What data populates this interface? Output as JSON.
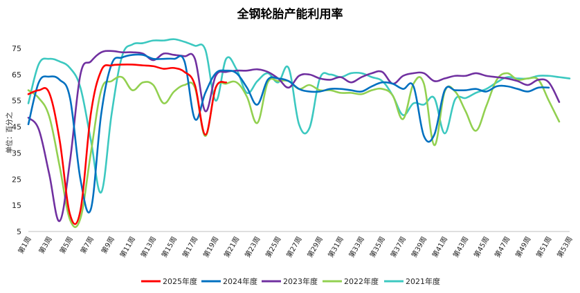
{
  "chart_data": {
    "type": "line",
    "title": "全钢轮胎产能利用率",
    "ylabel": "单位：百分之",
    "ylim": [
      5,
      75
    ],
    "yticks": [
      5,
      15,
      25,
      35,
      45,
      55,
      65,
      75
    ],
    "grid": false,
    "legend_position": "bottom",
    "x": [
      1,
      3,
      5,
      7,
      9,
      11,
      13,
      15,
      17,
      19,
      21,
      23,
      25,
      27,
      29,
      31,
      33,
      35,
      37,
      39,
      41,
      43,
      45,
      47,
      49,
      51,
      53
    ],
    "x_tick_labels": [
      "第1周",
      "第3周",
      "第5周",
      "第7周",
      "第9周",
      "第11周",
      "第13周",
      "第15周",
      "第17周",
      "第19周",
      "第21周",
      "第23周",
      "第25周",
      "第27周",
      "第29周",
      "第31周",
      "第33周",
      "第35周",
      "第37周",
      "第39周",
      "第41周",
      "第43周",
      "第45周",
      "第47周",
      "第49周",
      "第51周",
      "第53周"
    ],
    "series": [
      {
        "name": "2025年度",
        "color": "#ff0000",
        "points": [
          [
            1,
            57.5
          ],
          [
            2,
            59
          ],
          [
            3,
            58
          ],
          [
            4,
            40
          ],
          [
            5,
            11.5
          ],
          [
            6,
            13
          ],
          [
            7,
            50
          ],
          [
            8,
            66.5
          ],
          [
            9,
            68.5
          ],
          [
            10,
            68.8
          ],
          [
            11,
            68.8
          ],
          [
            12,
            68.5
          ],
          [
            13,
            68.2
          ],
          [
            14,
            67.2
          ],
          [
            15,
            67.5
          ],
          [
            16,
            66
          ],
          [
            17,
            61
          ],
          [
            18,
            42
          ],
          [
            19,
            60
          ],
          [
            20,
            62
          ]
        ]
      },
      {
        "name": "2024年度",
        "color": "#0070c0",
        "points": [
          [
            1,
            46
          ],
          [
            2,
            62
          ],
          [
            3,
            64.2
          ],
          [
            4,
            63
          ],
          [
            5,
            56
          ],
          [
            6,
            25
          ],
          [
            7,
            13.5
          ],
          [
            8,
            50
          ],
          [
            9,
            69
          ],
          [
            10,
            71.5
          ],
          [
            11,
            72.5
          ],
          [
            12,
            72.5
          ],
          [
            13,
            71
          ],
          [
            14,
            71
          ],
          [
            15,
            71
          ],
          [
            16,
            70
          ],
          [
            17,
            48
          ],
          [
            18,
            58
          ],
          [
            19,
            65.5
          ],
          [
            20,
            66.5
          ],
          [
            21,
            65.5
          ],
          [
            22,
            60
          ],
          [
            23,
            53.5
          ],
          [
            24,
            63
          ],
          [
            25,
            63.5
          ],
          [
            26,
            62.5
          ],
          [
            27,
            59.5
          ],
          [
            28,
            58.5
          ],
          [
            29,
            58.5
          ],
          [
            30,
            59.5
          ],
          [
            31,
            59.5
          ],
          [
            32,
            59
          ],
          [
            33,
            58.5
          ],
          [
            34,
            60.5
          ],
          [
            35,
            62
          ],
          [
            36,
            61.5
          ],
          [
            37,
            59.5
          ],
          [
            38,
            60.5
          ],
          [
            39,
            41.5
          ],
          [
            40,
            42
          ],
          [
            41,
            59
          ],
          [
            42,
            59
          ],
          [
            43,
            59
          ],
          [
            44,
            59.5
          ],
          [
            45,
            58.5
          ],
          [
            46,
            60.5
          ],
          [
            47,
            60.5
          ],
          [
            48,
            59.5
          ],
          [
            49,
            58.5
          ],
          [
            50,
            60
          ],
          [
            51,
            60
          ]
        ]
      },
      {
        "name": "2023年度",
        "color": "#7030a0",
        "points": [
          [
            1,
            48.5
          ],
          [
            2,
            44
          ],
          [
            3,
            27
          ],
          [
            4,
            9
          ],
          [
            5,
            32
          ],
          [
            6,
            65
          ],
          [
            7,
            70
          ],
          [
            8,
            73.5
          ],
          [
            9,
            74
          ],
          [
            10,
            73.5
          ],
          [
            11,
            73.5
          ],
          [
            12,
            73
          ],
          [
            13,
            70.5
          ],
          [
            14,
            73
          ],
          [
            15,
            72.5
          ],
          [
            16,
            72
          ],
          [
            17,
            71
          ],
          [
            18,
            51
          ],
          [
            19,
            64.5
          ],
          [
            20,
            66
          ],
          [
            21,
            66.5
          ],
          [
            22,
            66.5
          ],
          [
            23,
            67
          ],
          [
            24,
            66
          ],
          [
            25,
            63.5
          ],
          [
            26,
            60
          ],
          [
            27,
            64.5
          ],
          [
            28,
            65
          ],
          [
            29,
            63.5
          ],
          [
            30,
            63
          ],
          [
            31,
            64
          ],
          [
            32,
            62
          ],
          [
            33,
            64
          ],
          [
            34,
            65.5
          ],
          [
            35,
            66
          ],
          [
            36,
            61.5
          ],
          [
            37,
            64.5
          ],
          [
            38,
            65.5
          ],
          [
            39,
            65.5
          ],
          [
            40,
            62.5
          ],
          [
            41,
            63.5
          ],
          [
            42,
            64.5
          ],
          [
            43,
            64.5
          ],
          [
            44,
            65.5
          ],
          [
            45,
            64.5
          ],
          [
            46,
            64
          ],
          [
            47,
            63.5
          ],
          [
            48,
            62.5
          ],
          [
            49,
            61
          ],
          [
            50,
            63
          ],
          [
            51,
            62
          ],
          [
            52,
            54.5
          ]
        ]
      },
      {
        "name": "2022年度",
        "color": "#92d050",
        "points": [
          [
            1,
            59
          ],
          [
            2,
            56
          ],
          [
            3,
            49
          ],
          [
            4,
            30
          ],
          [
            5,
            9.5
          ],
          [
            6,
            10
          ],
          [
            7,
            35
          ],
          [
            8,
            59
          ],
          [
            9,
            62.5
          ],
          [
            10,
            64
          ],
          [
            11,
            59
          ],
          [
            12,
            62
          ],
          [
            13,
            61
          ],
          [
            14,
            54
          ],
          [
            15,
            58.5
          ],
          [
            16,
            61
          ],
          [
            17,
            60
          ],
          [
            18,
            41.5
          ],
          [
            19,
            60
          ],
          [
            20,
            61.5
          ],
          [
            21,
            62
          ],
          [
            22,
            56.5
          ],
          [
            23,
            46.5
          ],
          [
            24,
            62
          ],
          [
            25,
            62.5
          ],
          [
            26,
            62.5
          ],
          [
            27,
            59.5
          ],
          [
            28,
            61
          ],
          [
            29,
            59
          ],
          [
            30,
            59
          ],
          [
            31,
            58
          ],
          [
            32,
            58
          ],
          [
            33,
            57.5
          ],
          [
            34,
            59
          ],
          [
            35,
            59.5
          ],
          [
            36,
            57
          ],
          [
            37,
            48
          ],
          [
            38,
            61.5
          ],
          [
            39,
            61.5
          ],
          [
            40,
            38
          ],
          [
            41,
            58.5
          ],
          [
            42,
            58.5
          ],
          [
            43,
            51
          ],
          [
            44,
            43.5
          ],
          [
            45,
            53
          ],
          [
            46,
            63
          ],
          [
            47,
            65.5
          ],
          [
            48,
            63
          ],
          [
            49,
            63.5
          ],
          [
            50,
            63
          ],
          [
            51,
            55
          ],
          [
            52,
            47
          ]
        ]
      },
      {
        "name": "2021年度",
        "color": "#3cc8c0",
        "points": [
          [
            1,
            54
          ],
          [
            2,
            69
          ],
          [
            3,
            71
          ],
          [
            4,
            70
          ],
          [
            5,
            67.5
          ],
          [
            6,
            60
          ],
          [
            7,
            40
          ],
          [
            8,
            20
          ],
          [
            9,
            50
          ],
          [
            10,
            72
          ],
          [
            11,
            76.5
          ],
          [
            12,
            77
          ],
          [
            13,
            78
          ],
          [
            14,
            78
          ],
          [
            15,
            78.5
          ],
          [
            16,
            77.5
          ],
          [
            17,
            76
          ],
          [
            18,
            74.5
          ],
          [
            19,
            55
          ],
          [
            20,
            71
          ],
          [
            21,
            67
          ],
          [
            22,
            58
          ],
          [
            23,
            62.5
          ],
          [
            24,
            65.5
          ],
          [
            25,
            62
          ],
          [
            26,
            67.5
          ],
          [
            27,
            46
          ],
          [
            28,
            44.5
          ],
          [
            29,
            63.5
          ],
          [
            30,
            65
          ],
          [
            31,
            64
          ],
          [
            32,
            65.5
          ],
          [
            33,
            65.5
          ],
          [
            34,
            64
          ],
          [
            35,
            62.5
          ],
          [
            36,
            57
          ],
          [
            37,
            49.5
          ],
          [
            38,
            54
          ],
          [
            39,
            53.5
          ],
          [
            40,
            56
          ],
          [
            41,
            42.5
          ],
          [
            42,
            55.5
          ],
          [
            43,
            56
          ],
          [
            44,
            58
          ],
          [
            45,
            59.5
          ],
          [
            46,
            62
          ],
          [
            47,
            64
          ],
          [
            48,
            63.5
          ],
          [
            49,
            63.5
          ],
          [
            50,
            64.5
          ],
          [
            51,
            64.5
          ],
          [
            52,
            64
          ],
          [
            53,
            63.5
          ]
        ]
      }
    ]
  }
}
